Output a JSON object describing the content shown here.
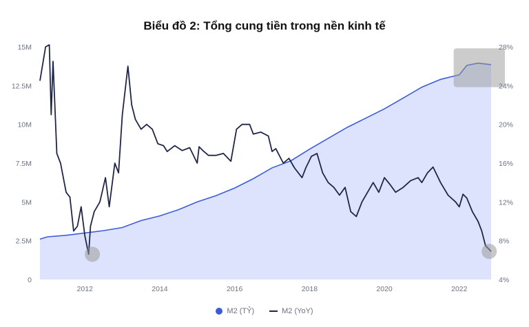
{
  "chart_data": {
    "type": "area",
    "title": "Biểu đồ 2: Tổng cung tiền trong nền kinh tế",
    "xlim": [
      2010.8,
      2022.85
    ],
    "x_ticks": [
      2012,
      2014,
      2016,
      2018,
      2020,
      2022
    ],
    "y_left": {
      "ticks": [
        "0",
        "2.5M",
        "5M",
        "7.5M",
        "10M",
        "12.5M",
        "15M"
      ],
      "ylim": [
        0,
        15000000
      ]
    },
    "y_right": {
      "ticks": [
        "4%",
        "8%",
        "12%",
        "16%",
        "20%",
        "24%",
        "28%"
      ],
      "ylim": [
        4,
        28
      ]
    },
    "grid": false,
    "legend_position": "bottom",
    "series": [
      {
        "name": "M2 (TỶ)",
        "axis": "left",
        "color": "#3b5bdb",
        "fill": "#dde3fc",
        "x": [
          2010.8,
          2011.0,
          2011.5,
          2012.0,
          2012.5,
          2013.0,
          2013.5,
          2014.0,
          2014.5,
          2015.0,
          2015.5,
          2016.0,
          2016.5,
          2017.0,
          2017.5,
          2018.0,
          2018.5,
          2019.0,
          2019.5,
          2020.0,
          2020.5,
          2021.0,
          2021.5,
          2022.0,
          2022.2,
          2022.5,
          2022.85
        ],
        "values": [
          2600000,
          2750000,
          2850000,
          3000000,
          3150000,
          3350000,
          3800000,
          4100000,
          4500000,
          5000000,
          5400000,
          5900000,
          6500000,
          7200000,
          7650000,
          8400000,
          9100000,
          9800000,
          10400000,
          11000000,
          11700000,
          12400000,
          12900000,
          13200000,
          13800000,
          13950000,
          13850000
        ]
      },
      {
        "name": "M2 (YoY)",
        "axis": "right",
        "color": "#1f2546",
        "x": [
          2010.8,
          2010.95,
          2011.05,
          2011.1,
          2011.15,
          2011.25,
          2011.35,
          2011.5,
          2011.6,
          2011.7,
          2011.8,
          2011.9,
          2012.0,
          2012.1,
          2012.15,
          2012.25,
          2012.4,
          2012.55,
          2012.65,
          2012.8,
          2012.9,
          2013.0,
          2013.15,
          2013.25,
          2013.35,
          2013.5,
          2013.65,
          2013.8,
          2013.95,
          2014.1,
          2014.2,
          2014.4,
          2014.6,
          2014.8,
          2015.0,
          2015.05,
          2015.15,
          2015.3,
          2015.5,
          2015.7,
          2015.9,
          2016.05,
          2016.2,
          2016.4,
          2016.5,
          2016.7,
          2016.9,
          2017.0,
          2017.1,
          2017.3,
          2017.45,
          2017.6,
          2017.8,
          2017.9,
          2018.05,
          2018.2,
          2018.35,
          2018.5,
          2018.65,
          2018.8,
          2018.95,
          2019.1,
          2019.25,
          2019.4,
          2019.55,
          2019.7,
          2019.85,
          2020.0,
          2020.15,
          2020.3,
          2020.5,
          2020.7,
          2020.9,
          2021.0,
          2021.15,
          2021.3,
          2021.5,
          2021.7,
          2021.9,
          2022.0,
          2022.1,
          2022.2,
          2022.35,
          2022.5,
          2022.6,
          2022.7,
          2022.85
        ],
        "values": [
          24.5,
          28.0,
          28.2,
          21.0,
          26.5,
          17.0,
          16.0,
          13.0,
          12.5,
          9.0,
          9.5,
          11.5,
          8.5,
          6.6,
          9.5,
          11.0,
          12.0,
          14.5,
          11.5,
          16.0,
          15.0,
          21.0,
          26.0,
          22.0,
          20.5,
          19.5,
          20.0,
          19.5,
          18.0,
          17.8,
          17.2,
          17.8,
          17.3,
          17.6,
          16.0,
          17.7,
          17.3,
          16.8,
          16.8,
          17.0,
          16.2,
          19.5,
          20.0,
          20.0,
          19.0,
          19.2,
          18.8,
          17.2,
          17.5,
          16.0,
          16.5,
          15.5,
          14.5,
          15.5,
          16.7,
          17.0,
          15.0,
          14.0,
          13.5,
          12.7,
          13.5,
          11.0,
          10.5,
          12.0,
          13.0,
          14.0,
          13.0,
          14.5,
          13.8,
          13.0,
          13.5,
          14.2,
          14.5,
          14.0,
          15.0,
          15.6,
          14.0,
          12.7,
          12.0,
          11.5,
          12.8,
          12.4,
          11.0,
          10.0,
          9.0,
          7.5,
          6.9
        ]
      }
    ]
  },
  "colors": {
    "highlight": "#9a9a9a"
  }
}
